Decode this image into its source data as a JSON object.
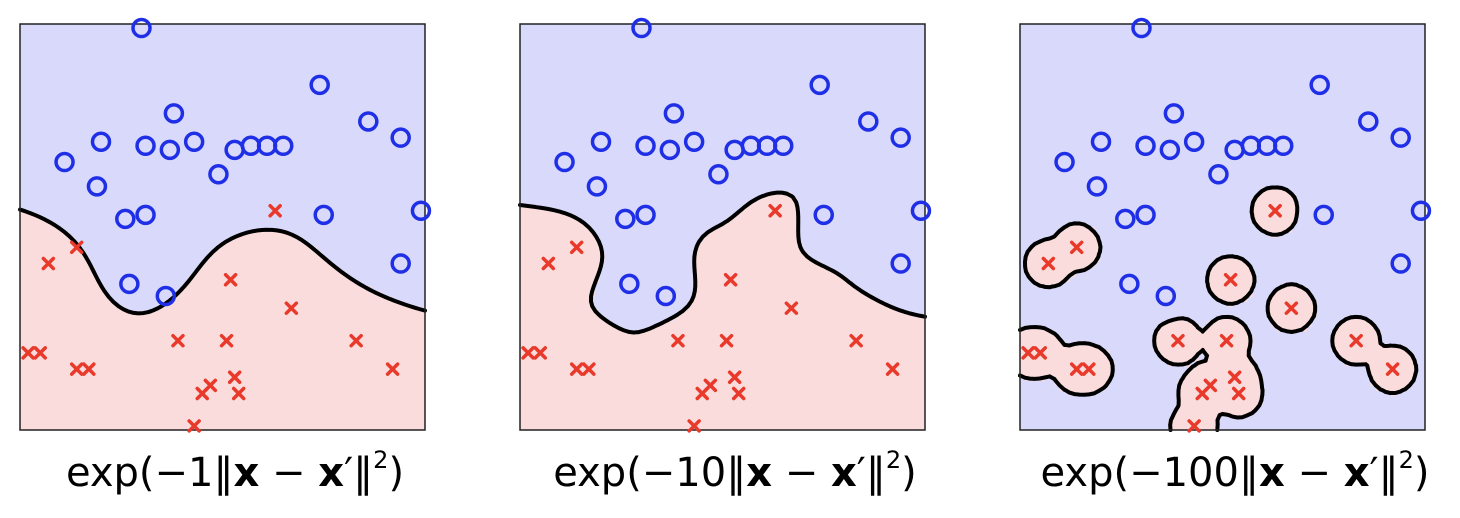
{
  "chart_data": {
    "type": "scatter",
    "xlim": [
      0,
      1
    ],
    "ylim": [
      0,
      1
    ],
    "grid": false,
    "colors": {
      "circle_class": "#1f2fe6",
      "cross_class": "#e8392a",
      "circle_region": "#d9d9fb",
      "cross_region": "#fbdcdc",
      "boundary": "#000000"
    },
    "series": [
      {
        "marker": "circle",
        "points": [
          [
            0.3,
            0.99
          ],
          [
            0.74,
            0.85
          ],
          [
            0.38,
            0.78
          ],
          [
            0.86,
            0.76
          ],
          [
            0.2,
            0.71
          ],
          [
            0.31,
            0.7
          ],
          [
            0.37,
            0.69
          ],
          [
            0.43,
            0.71
          ],
          [
            0.53,
            0.69
          ],
          [
            0.57,
            0.7
          ],
          [
            0.61,
            0.7
          ],
          [
            0.65,
            0.7
          ],
          [
            0.94,
            0.72
          ],
          [
            0.11,
            0.66
          ],
          [
            0.19,
            0.6
          ],
          [
            0.49,
            0.63
          ],
          [
            0.26,
            0.52
          ],
          [
            0.31,
            0.53
          ],
          [
            0.75,
            0.53
          ],
          [
            0.99,
            0.54
          ],
          [
            0.94,
            0.41
          ],
          [
            0.27,
            0.36
          ],
          [
            0.36,
            0.33
          ]
        ]
      },
      {
        "marker": "cross",
        "points": [
          [
            0.63,
            0.54
          ],
          [
            0.14,
            0.45
          ],
          [
            0.07,
            0.41
          ],
          [
            0.52,
            0.37
          ],
          [
            0.67,
            0.3
          ],
          [
            0.39,
            0.22
          ],
          [
            0.51,
            0.22
          ],
          [
            0.83,
            0.22
          ],
          [
            0.02,
            0.19
          ],
          [
            0.05,
            0.19
          ],
          [
            0.14,
            0.15
          ],
          [
            0.17,
            0.15
          ],
          [
            0.92,
            0.15
          ],
          [
            0.53,
            0.13
          ],
          [
            0.47,
            0.11
          ],
          [
            0.45,
            0.09
          ],
          [
            0.54,
            0.09
          ],
          [
            0.43,
            0.01
          ]
        ]
      }
    ],
    "panels": [
      {
        "gamma": 1,
        "caption": {
          "pre": "exp(−1‖",
          "x": "x",
          "mid": " − ",
          "x2": "x",
          "prime": "′",
          "post": "‖",
          "sup": "2",
          "end": ")"
        }
      },
      {
        "gamma": 10,
        "caption": {
          "pre": "exp(−10‖",
          "x": "x",
          "mid": " − ",
          "x2": "x",
          "prime": "′",
          "post": "‖",
          "sup": "2",
          "end": ")"
        }
      },
      {
        "gamma": 100,
        "caption": {
          "pre": "exp(−100‖",
          "x": "x",
          "mid": " − ",
          "x2": "x",
          "prime": "′",
          "post": "‖",
          "sup": "2",
          "end": ")"
        }
      }
    ]
  }
}
